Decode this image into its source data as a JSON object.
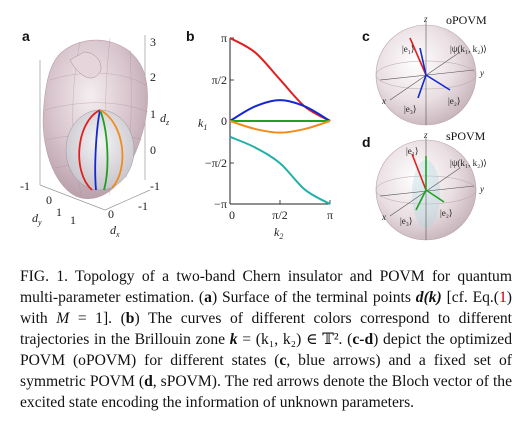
{
  "panel_a": {
    "label": "a",
    "z_ticks": [
      "3",
      "2",
      "1",
      "0",
      "-1"
    ],
    "z_axis_label": "d",
    "z_axis_sub": "z",
    "y_ticks": [
      "-1",
      "0",
      "1"
    ],
    "y_axis_label": "d",
    "y_axis_sub": "y",
    "x_ticks": [
      "1",
      "0",
      "-1"
    ],
    "x_axis_label": "d",
    "x_axis_sub": "x"
  },
  "panel_b": {
    "label": "b",
    "y_ticks": [
      "π",
      "π/2",
      "0",
      "−π/2",
      "−π"
    ],
    "x_ticks": [
      "0",
      "π/2",
      "π"
    ],
    "y_axis_label": "k",
    "y_axis_sub": "1",
    "x_axis_label": "k",
    "x_axis_sub": "2",
    "colors": {
      "red": "#e02020",
      "blue": "#1428d0",
      "green": "#20a020",
      "orange": "#f08c1c",
      "teal": "#20b0a8"
    }
  },
  "chart_data": {
    "type": "line",
    "xlabel": "k₂",
    "ylabel": "k₁",
    "xlim": [
      "0",
      "π"
    ],
    "ylim": [
      "−π",
      "π"
    ],
    "series": [
      {
        "color": "red",
        "x": [
          0,
          0.785,
          1.571,
          2.356,
          3.1416
        ],
        "y": [
          3.1416,
          2.6,
          1.57,
          0.54,
          0
        ]
      },
      {
        "color": "blue",
        "x": [
          0,
          0.785,
          1.571,
          2.356,
          3.1416
        ],
        "y": [
          0,
          0.55,
          0.79,
          0.55,
          0
        ]
      },
      {
        "color": "green",
        "x": [
          0,
          3.1416
        ],
        "y": [
          0,
          0
        ]
      },
      {
        "color": "orange",
        "x": [
          0,
          0.785,
          1.571,
          2.356,
          3.1416
        ],
        "y": [
          0,
          -0.3,
          -0.44,
          -0.3,
          0
        ]
      },
      {
        "color": "teal",
        "x": [
          0,
          0.785,
          1.571,
          2.356,
          3.1416
        ],
        "y": [
          -0.6,
          -1.0,
          -1.6,
          -2.6,
          -3.1416
        ]
      }
    ]
  },
  "panel_c": {
    "label": "c",
    "title": "oPOVM",
    "state_label": "|ψ(k₁, k₂)⟩",
    "e1": "|e₁⟩",
    "e2": "|e₂⟩",
    "e3": "|e₃⟩",
    "ax_x": "x",
    "ax_y": "y",
    "ax_z": "z"
  },
  "panel_d": {
    "label": "d",
    "title": "sPOVM",
    "state_label": "|ψ(k₁, k₂)⟩",
    "e1": "|e₁⟩",
    "e2": "|e₂⟩",
    "e3": "|e₃⟩",
    "ax_x": "x",
    "ax_y": "y",
    "ax_z": "z"
  },
  "caption": {
    "fig": "FIG. 1.",
    "s1": " Topology of a two-band Chern insulator and POVM for quantum multi-parameter estimation. (",
    "a": "a",
    "s2": ") Surface of the terminal points ",
    "dk": "d(k)",
    "s3": " [cf. Eq.(",
    "eqref": "1",
    "s4": ") with ",
    "M": "M",
    "s5": " = 1]. (",
    "b": "b",
    "s6": ") The curves of different colors correspond to different trajectories in the Brillouin zone ",
    "keq": "k",
    "s7": " = (k₁, k₂) ∈ 𝕋². (",
    "cd": "c-d",
    "s8": ") depict the optimized POVM (oPOVM) for different states (",
    "c": "c",
    "s9": ", blue arrows) and a fixed set of symmetric POVM (",
    "d": "d",
    "s10": ", sPOVM). The red arrows denote the Bloch vector of the excited state encoding the information of unknown parameters."
  }
}
